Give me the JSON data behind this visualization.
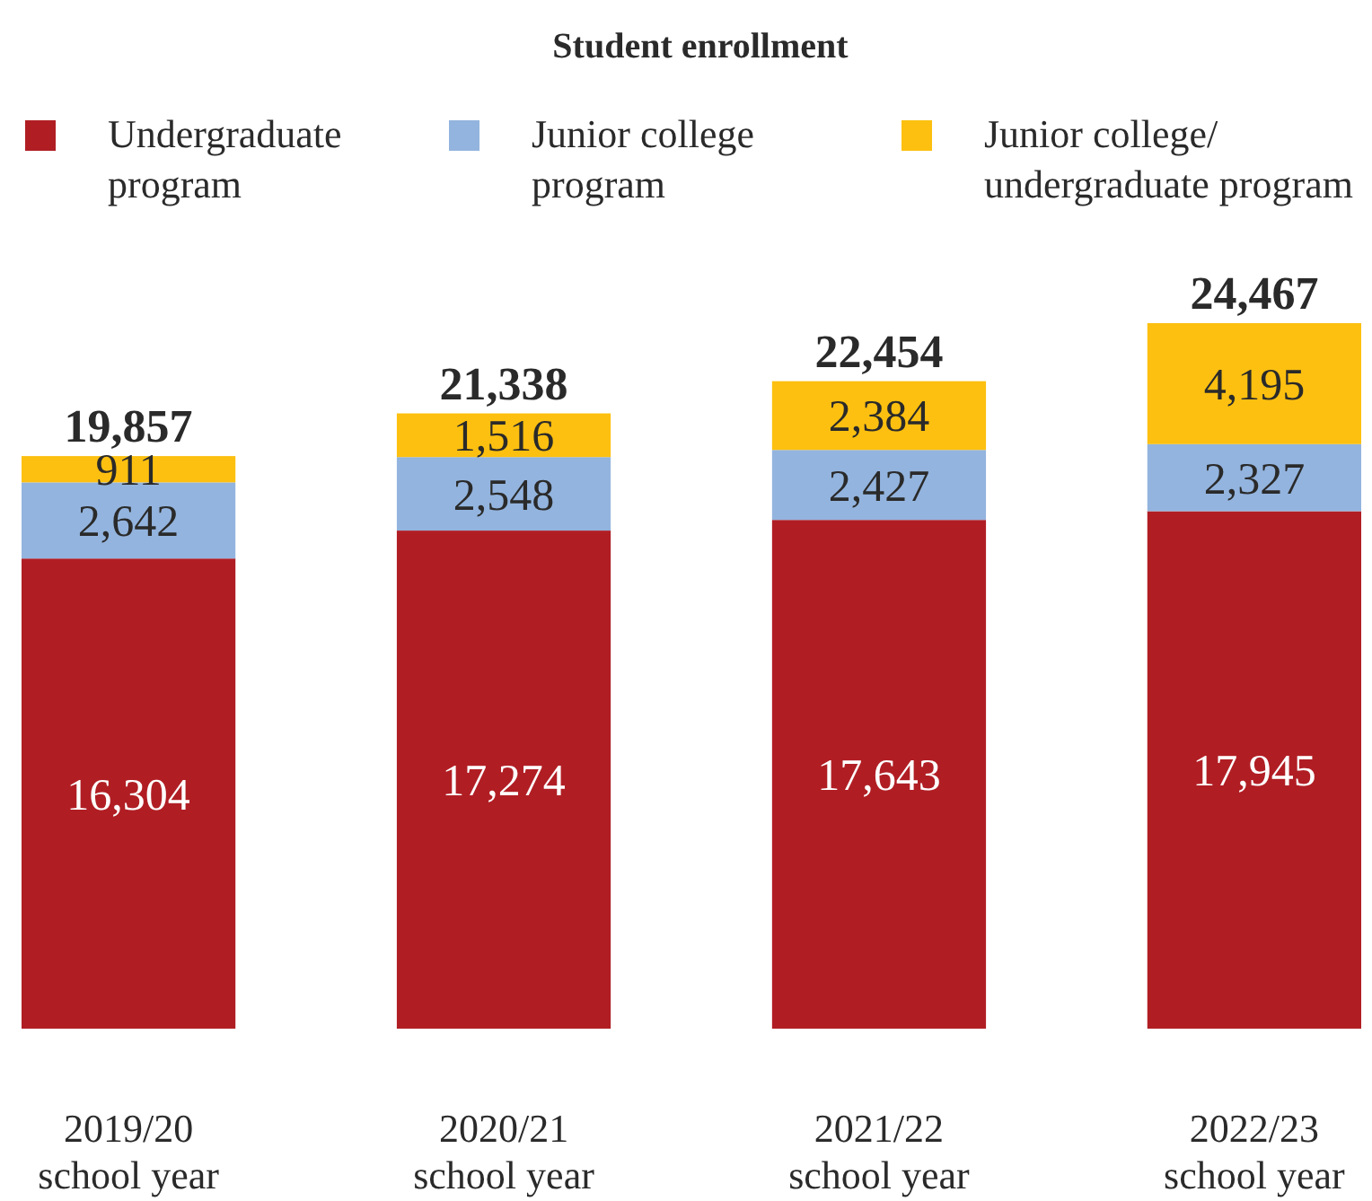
{
  "chart_data": {
    "type": "bar",
    "title": "Student enrollment",
    "stacked": true,
    "legend": "top",
    "categories": [
      "2019/20\nschool year",
      "2020/21\nschool year",
      "2021/22\nschool year",
      "2022/23\nschool year"
    ],
    "series": [
      {
        "name": "Undergraduate\nprogram",
        "color": "#b01e24",
        "values": [
          16304,
          17274,
          17643,
          17945
        ],
        "value_labels": [
          "16,304",
          "17,274",
          "17,643",
          "17,945"
        ]
      },
      {
        "name": "Junior college\nprogram",
        "color": "#93b4de",
        "values": [
          2642,
          2548,
          2427,
          2327
        ],
        "value_labels": [
          "2,642",
          "2,548",
          "2,427",
          "2,327"
        ]
      },
      {
        "name": "Junior college/\nundergraduate program",
        "color": "#fdc010",
        "values": [
          911,
          1516,
          2384,
          4195
        ],
        "value_labels": [
          "911",
          "1,516",
          "2,384",
          "4,195"
        ]
      }
    ],
    "totals": [
      "19,857",
      "21,338",
      "22,454",
      "24,467"
    ]
  }
}
